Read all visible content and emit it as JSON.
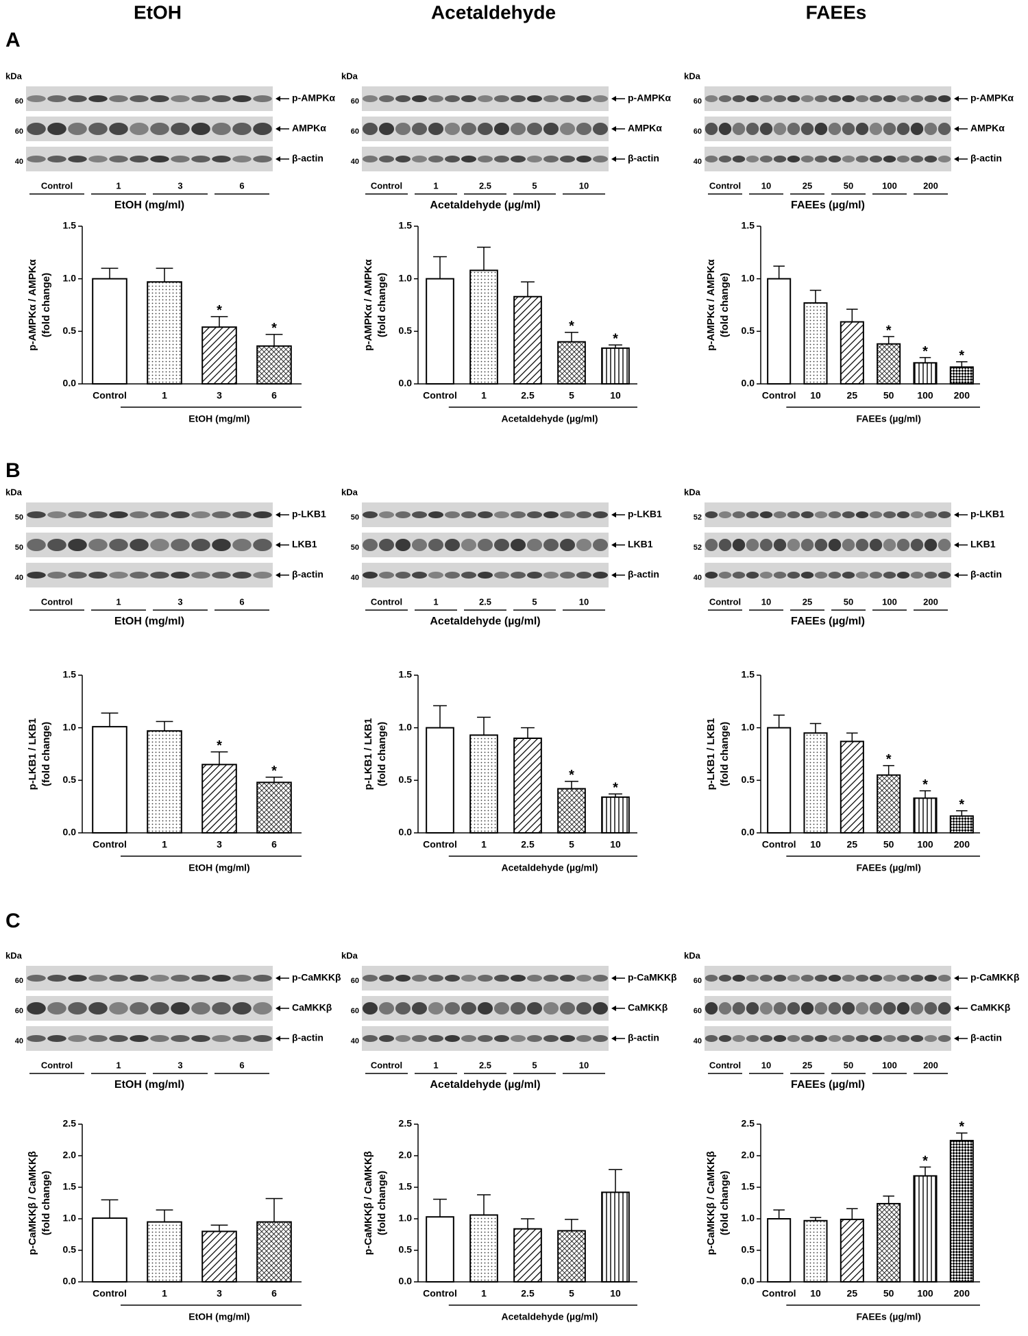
{
  "column_titles": [
    "EtOH",
    "Acetaldehyde",
    "FAEEs"
  ],
  "panels": [
    {
      "letter": "A",
      "blots": [
        {
          "kda": "kDa",
          "rows": [
            {
              "mw": "60",
              "protein": "p-AMPKα"
            },
            {
              "mw": "60",
              "protein": "AMPKα"
            },
            {
              "mw": "40",
              "protein": "β-actin"
            }
          ],
          "groups": [
            "Control",
            "1",
            "3",
            "6"
          ],
          "xlabel": "EtOH (mg/ml)"
        },
        {
          "kda": "kDa",
          "rows": [
            {
              "mw": "60",
              "protein": "p-AMPKα"
            },
            {
              "mw": "60",
              "protein": "AMPKα"
            },
            {
              "mw": "40",
              "protein": "β-actin"
            }
          ],
          "groups": [
            "Control",
            "1",
            "2.5",
            "5",
            "10"
          ],
          "xlabel": "Acetaldehyde (µg/ml)"
        },
        {
          "kda": "kDa",
          "rows": [
            {
              "mw": "60",
              "protein": "p-AMPKα"
            },
            {
              "mw": "60",
              "protein": "AMPKα"
            },
            {
              "mw": "40",
              "protein": "β-actin"
            }
          ],
          "groups": [
            "Control",
            "10",
            "25",
            "50",
            "100",
            "200"
          ],
          "xlabel": "FAEEs (µg/ml)"
        }
      ]
    },
    {
      "letter": "B",
      "blots": [
        {
          "kda": "kDa",
          "rows": [
            {
              "mw": "50",
              "protein": "p-LKB1"
            },
            {
              "mw": "50",
              "protein": "LKB1"
            },
            {
              "mw": "40",
              "protein": "β-actin"
            }
          ],
          "groups": [
            "Control",
            "1",
            "3",
            "6"
          ],
          "xlabel": "EtOH (mg/ml)"
        },
        {
          "kda": "kDa",
          "rows": [
            {
              "mw": "50",
              "protein": "p-LKB1"
            },
            {
              "mw": "50",
              "protein": "LKB1"
            },
            {
              "mw": "40",
              "protein": "β-actin"
            }
          ],
          "groups": [
            "Control",
            "1",
            "2.5",
            "5",
            "10"
          ],
          "xlabel": "Acetaldehyde (µg/ml)"
        },
        {
          "kda": "kDa",
          "rows": [
            {
              "mw": "52",
              "protein": "p-LKB1"
            },
            {
              "mw": "52",
              "protein": "LKB1"
            },
            {
              "mw": "40",
              "protein": "β-actin"
            }
          ],
          "groups": [
            "Control",
            "10",
            "25",
            "50",
            "100",
            "200"
          ],
          "xlabel": "FAEEs (µg/ml)"
        }
      ]
    },
    {
      "letter": "C",
      "blots": [
        {
          "kda": "kDa",
          "rows": [
            {
              "mw": "60",
              "protein": "p-CaMKKβ"
            },
            {
              "mw": "60",
              "protein": "CaMKKβ"
            },
            {
              "mw": "40",
              "protein": "β-actin"
            }
          ],
          "groups": [
            "Control",
            "1",
            "3",
            "6"
          ],
          "xlabel": "EtOH (mg/ml)"
        },
        {
          "kda": "kDa",
          "rows": [
            {
              "mw": "60",
              "protein": "p-CaMKKβ"
            },
            {
              "mw": "60",
              "protein": "CaMKKβ"
            },
            {
              "mw": "40",
              "protein": "β-actin"
            }
          ],
          "groups": [
            "Control",
            "1",
            "2.5",
            "5",
            "10"
          ],
          "xlabel": "Acetaldehyde  (µg/ml)"
        },
        {
          "kda": "kDa",
          "rows": [
            {
              "mw": "60",
              "protein": "p-CaMKKβ"
            },
            {
              "mw": "60",
              "protein": "CaMKKβ"
            },
            {
              "mw": "40",
              "protein": "β-actin"
            }
          ],
          "groups": [
            "Control",
            "10",
            "25",
            "50",
            "100",
            "200"
          ],
          "xlabel": "FAEEs (µg/ml)"
        }
      ]
    }
  ],
  "chart_data": [
    {
      "type": "bar",
      "ylabel": [
        "p-AMPKα / AMPKα",
        "(fold change)"
      ],
      "xlabel": "EtOH (mg/ml)",
      "categories": [
        "Control",
        "1",
        "3",
        "6"
      ],
      "values": [
        1.0,
        0.97,
        0.54,
        0.36
      ],
      "errors": [
        0.1,
        0.13,
        0.1,
        0.11
      ],
      "annotations": [
        null,
        null,
        "*",
        "*"
      ],
      "patterns": [
        "none",
        "dots",
        "diag",
        "cross"
      ],
      "ylim": [
        0,
        1.5
      ],
      "yticks": [
        {
          "value": 0,
          "label": "0.0"
        },
        {
          "value": 0.5,
          "label": "0.5"
        },
        {
          "value": 1,
          "label": "1.0"
        },
        {
          "value": 1.5,
          "label": "1.5"
        }
      ]
    },
    {
      "type": "bar",
      "ylabel": [
        "p-AMPKα / AMPKα",
        "(fold change)"
      ],
      "xlabel": "Acetaldehyde (µg/ml)",
      "categories": [
        "Control",
        "1",
        "2.5",
        "5",
        "10"
      ],
      "values": [
        1.0,
        1.08,
        0.83,
        0.4,
        0.34
      ],
      "errors": [
        0.21,
        0.22,
        0.14,
        0.09,
        0.03
      ],
      "annotations": [
        null,
        null,
        null,
        "*",
        "*"
      ],
      "patterns": [
        "none",
        "dots",
        "diag",
        "cross",
        "vert"
      ],
      "ylim": [
        0,
        1.5
      ],
      "yticks": [
        {
          "value": 0,
          "label": "0.0"
        },
        {
          "value": 0.5,
          "label": "0.5"
        },
        {
          "value": 1,
          "label": "1.0"
        },
        {
          "value": 1.5,
          "label": "1.5"
        }
      ]
    },
    {
      "type": "bar",
      "ylabel": [
        "p-AMPKα / AMPKα",
        "(fold change)"
      ],
      "xlabel": "FAEEs (µg/ml)",
      "categories": [
        "Control",
        "10",
        "25",
        "50",
        "100",
        "200"
      ],
      "values": [
        1.0,
        0.77,
        0.59,
        0.38,
        0.2,
        0.16
      ],
      "errors": [
        0.12,
        0.12,
        0.12,
        0.07,
        0.05,
        0.05
      ],
      "annotations": [
        null,
        null,
        null,
        "*",
        "*",
        "*"
      ],
      "patterns": [
        "none",
        "dots",
        "diag",
        "cross",
        "vert",
        "check"
      ],
      "ylim": [
        0,
        1.5
      ],
      "yticks": [
        {
          "value": 0,
          "label": "0.0"
        },
        {
          "value": 0.5,
          "label": "0.5"
        },
        {
          "value": 1,
          "label": "1.0"
        },
        {
          "value": 1.5,
          "label": "1.5"
        }
      ]
    },
    {
      "type": "bar",
      "ylabel": [
        "p-LKB1 / LKB1",
        "(fold change)"
      ],
      "xlabel": "EtOH (mg/ml)",
      "categories": [
        "Control",
        "1",
        "3",
        "6"
      ],
      "values": [
        1.01,
        0.97,
        0.65,
        0.48
      ],
      "errors": [
        0.13,
        0.09,
        0.12,
        0.05
      ],
      "annotations": [
        null,
        null,
        "*",
        "*"
      ],
      "patterns": [
        "none",
        "dots",
        "diag",
        "cross"
      ],
      "ylim": [
        0,
        1.5
      ],
      "yticks": [
        {
          "value": 0,
          "label": "0.0"
        },
        {
          "value": 0.5,
          "label": "0.5"
        },
        {
          "value": 1,
          "label": "1.0"
        },
        {
          "value": 1.5,
          "label": "1.5"
        }
      ]
    },
    {
      "type": "bar",
      "ylabel": [
        "p-LKB1 / LKB1",
        "(fold change)"
      ],
      "xlabel": "Acetaldehyde (µg/ml)",
      "categories": [
        "Control",
        "1",
        "2.5",
        "5",
        "10"
      ],
      "values": [
        1.0,
        0.93,
        0.9,
        0.42,
        0.34
      ],
      "errors": [
        0.21,
        0.17,
        0.1,
        0.07,
        0.03
      ],
      "annotations": [
        null,
        null,
        null,
        "*",
        "*"
      ],
      "patterns": [
        "none",
        "dots",
        "diag",
        "cross",
        "vert"
      ],
      "ylim": [
        0,
        1.5
      ],
      "yticks": [
        {
          "value": 0,
          "label": "0.0"
        },
        {
          "value": 0.5,
          "label": "0.5"
        },
        {
          "value": 1,
          "label": "1.0"
        },
        {
          "value": 1.5,
          "label": "1.5"
        }
      ]
    },
    {
      "type": "bar",
      "ylabel": [
        "p-LKB1 / LKB1",
        "(fold change)"
      ],
      "xlabel": "FAEEs (µg/ml)",
      "categories": [
        "Control",
        "10",
        "25",
        "50",
        "100",
        "200"
      ],
      "values": [
        1.0,
        0.95,
        0.87,
        0.55,
        0.33,
        0.16
      ],
      "errors": [
        0.12,
        0.09,
        0.08,
        0.09,
        0.07,
        0.05
      ],
      "annotations": [
        null,
        null,
        null,
        "*",
        "*",
        "*"
      ],
      "patterns": [
        "none",
        "dots",
        "diag",
        "cross",
        "vert",
        "check"
      ],
      "ylim": [
        0,
        1.5
      ],
      "yticks": [
        {
          "value": 0,
          "label": "0.0"
        },
        {
          "value": 0.5,
          "label": "0.5"
        },
        {
          "value": 1,
          "label": "1.0"
        },
        {
          "value": 1.5,
          "label": "1.5"
        }
      ]
    },
    {
      "type": "bar",
      "ylabel": [
        "p-CaMKKβ / CaMKKβ",
        "(fold change)"
      ],
      "xlabel": "EtOH (mg/ml)",
      "categories": [
        "Control",
        "1",
        "3",
        "6"
      ],
      "values": [
        1.01,
        0.95,
        0.8,
        0.95
      ],
      "errors": [
        0.29,
        0.19,
        0.1,
        0.37
      ],
      "annotations": [
        null,
        null,
        null,
        null
      ],
      "patterns": [
        "none",
        "dots",
        "diag",
        "cross"
      ],
      "ylim": [
        0,
        2.5
      ],
      "yticks": [
        {
          "value": 0,
          "label": "0.0"
        },
        {
          "value": 0.5,
          "label": "0.5"
        },
        {
          "value": 1,
          "label": "1.0"
        },
        {
          "value": 1.5,
          "label": "1.5"
        },
        {
          "value": 2,
          "label": "2.0"
        },
        {
          "value": 2.5,
          "label": "2.5"
        }
      ]
    },
    {
      "type": "bar",
      "ylabel": [
        "p-CaMKKβ / CaMKKβ",
        "(fold change)"
      ],
      "xlabel": "Acetaldehyde (µg/ml)",
      "categories": [
        "Control",
        "1",
        "2.5",
        "5",
        "10"
      ],
      "values": [
        1.03,
        1.06,
        0.84,
        0.81,
        1.42
      ],
      "errors": [
        0.28,
        0.32,
        0.16,
        0.18,
        0.36
      ],
      "annotations": [
        null,
        null,
        null,
        null,
        null
      ],
      "patterns": [
        "none",
        "dots",
        "diag",
        "cross",
        "vert"
      ],
      "ylim": [
        0,
        2.5
      ],
      "yticks": [
        {
          "value": 0,
          "label": "0.0"
        },
        {
          "value": 0.5,
          "label": "0.5"
        },
        {
          "value": 1,
          "label": "1.0"
        },
        {
          "value": 1.5,
          "label": "1.5"
        },
        {
          "value": 2,
          "label": "2.0"
        },
        {
          "value": 2.5,
          "label": "2.5"
        }
      ]
    },
    {
      "type": "bar",
      "ylabel": [
        "p-CaMKKβ / CaMKKβ",
        "(fold change)"
      ],
      "xlabel": "FAEEs (µg/ml)",
      "categories": [
        "Control",
        "10",
        "25",
        "50",
        "100",
        "200"
      ],
      "values": [
        1.0,
        0.97,
        0.99,
        1.24,
        1.68,
        2.24
      ],
      "errors": [
        0.14,
        0.05,
        0.17,
        0.12,
        0.14,
        0.12
      ],
      "annotations": [
        null,
        null,
        null,
        null,
        "*",
        "*"
      ],
      "patterns": [
        "none",
        "dots",
        "diag",
        "cross",
        "vert",
        "check"
      ],
      "ylim": [
        0,
        2.5
      ],
      "yticks": [
        {
          "value": 0,
          "label": "0.0"
        },
        {
          "value": 0.5,
          "label": "0.5"
        },
        {
          "value": 1,
          "label": "1.0"
        },
        {
          "value": 1.5,
          "label": "1.5"
        },
        {
          "value": 2,
          "label": "2.0"
        },
        {
          "value": 2.5,
          "label": "2.5"
        }
      ]
    }
  ]
}
